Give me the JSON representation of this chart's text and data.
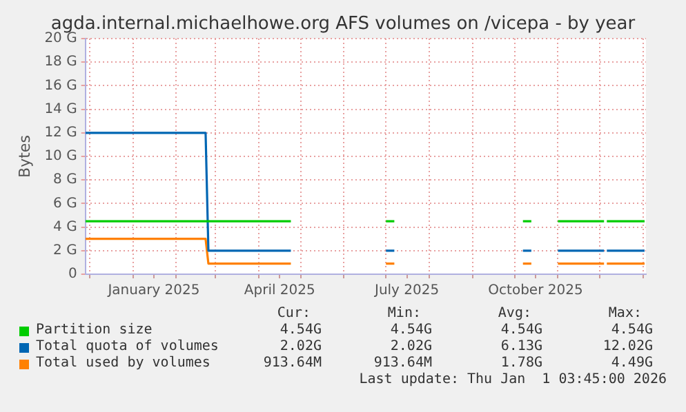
{
  "chart_data": {
    "type": "line",
    "title": "agda.internal.michaelhowe.org AFS volumes on /vicepa - by year",
    "ylabel": "Bytes",
    "x": [
      "2024-11-28",
      "2025-02-22",
      "2025-02-24",
      "2025-04-24",
      "2025-04-25",
      "2025-07-01",
      "2025-07-07",
      "2025-07-08",
      "2025-10-07",
      "2025-10-13",
      "2025-10-14",
      "2025-11-01",
      "2025-12-04",
      "2025-12-05",
      "2025-12-06",
      "2026-01-02"
    ],
    "series": [
      {
        "name": "Partition size",
        "color": "#00cc00",
        "values": [
          4.5,
          4.5,
          4.5,
          4.5,
          null,
          4.5,
          4.5,
          null,
          4.5,
          4.5,
          null,
          4.5,
          4.5,
          null,
          4.5,
          4.5
        ]
      },
      {
        "name": "Total quota of volumes",
        "color": "#0066b3",
        "values": [
          12,
          12,
          2,
          2,
          null,
          2,
          2,
          null,
          2,
          2,
          null,
          2,
          2,
          null,
          2,
          2
        ]
      },
      {
        "name": "Total used by volumes",
        "color": "#ff8000",
        "values": [
          3,
          3,
          0.9,
          0.9,
          null,
          0.9,
          0.9,
          null,
          0.9,
          0.9,
          null,
          0.9,
          0.9,
          null,
          0.9,
          0.9
        ]
      }
    ],
    "xlim": [
      "2024-11-28",
      "2026-01-03"
    ],
    "xticks": [
      {
        "value": "2024-12-01",
        "label": null
      },
      {
        "value": "2025-01-01",
        "label": null
      },
      {
        "value": "2025-01-16",
        "label": "January 2025"
      },
      {
        "value": "2025-02-01",
        "label": null
      },
      {
        "value": "2025-03-01",
        "label": null
      },
      {
        "value": "2025-04-01",
        "label": null
      },
      {
        "value": "2025-04-16",
        "label": "April 2025"
      },
      {
        "value": "2025-05-01",
        "label": null
      },
      {
        "value": "2025-06-01",
        "label": null
      },
      {
        "value": "2025-07-01",
        "label": null
      },
      {
        "value": "2025-07-16",
        "label": "July 2025"
      },
      {
        "value": "2025-08-01",
        "label": null
      },
      {
        "value": "2025-09-01",
        "label": null
      },
      {
        "value": "2025-10-01",
        "label": null
      },
      {
        "value": "2025-10-16",
        "label": "October 2025"
      },
      {
        "value": "2025-11-01",
        "label": null
      },
      {
        "value": "2025-12-01",
        "label": null
      },
      {
        "value": "2026-01-01",
        "label": null
      }
    ],
    "ylim": [
      0,
      20
    ],
    "yticks": [
      {
        "value": 0,
        "label": "0"
      },
      {
        "value": 2,
        "label": "2 G"
      },
      {
        "value": 4,
        "label": "4 G"
      },
      {
        "value": 6,
        "label": "6 G"
      },
      {
        "value": 8,
        "label": "8 G"
      },
      {
        "value": 10,
        "label": "10 G"
      },
      {
        "value": 12,
        "label": "12 G"
      },
      {
        "value": 14,
        "label": "14 G"
      },
      {
        "value": 16,
        "label": "16 G"
      },
      {
        "value": 18,
        "label": "18 G"
      },
      {
        "value": 20,
        "label": "20 G"
      }
    ],
    "grid": true,
    "legend": "bottom",
    "marker": "none",
    "line_style": "solid",
    "annotations": [
      "Cur:",
      "Min:",
      "Avg:",
      "Max:",
      "4.54G",
      "4.54G",
      "4.54G",
      "4.54G",
      "2.02G",
      "2.02G",
      "6.13G",
      "12.02G",
      "913.64M",
      "913.64M",
      "1.78G",
      "4.49G",
      "Last update: Thu Jan  1 03:45:00 2026"
    ]
  }
}
